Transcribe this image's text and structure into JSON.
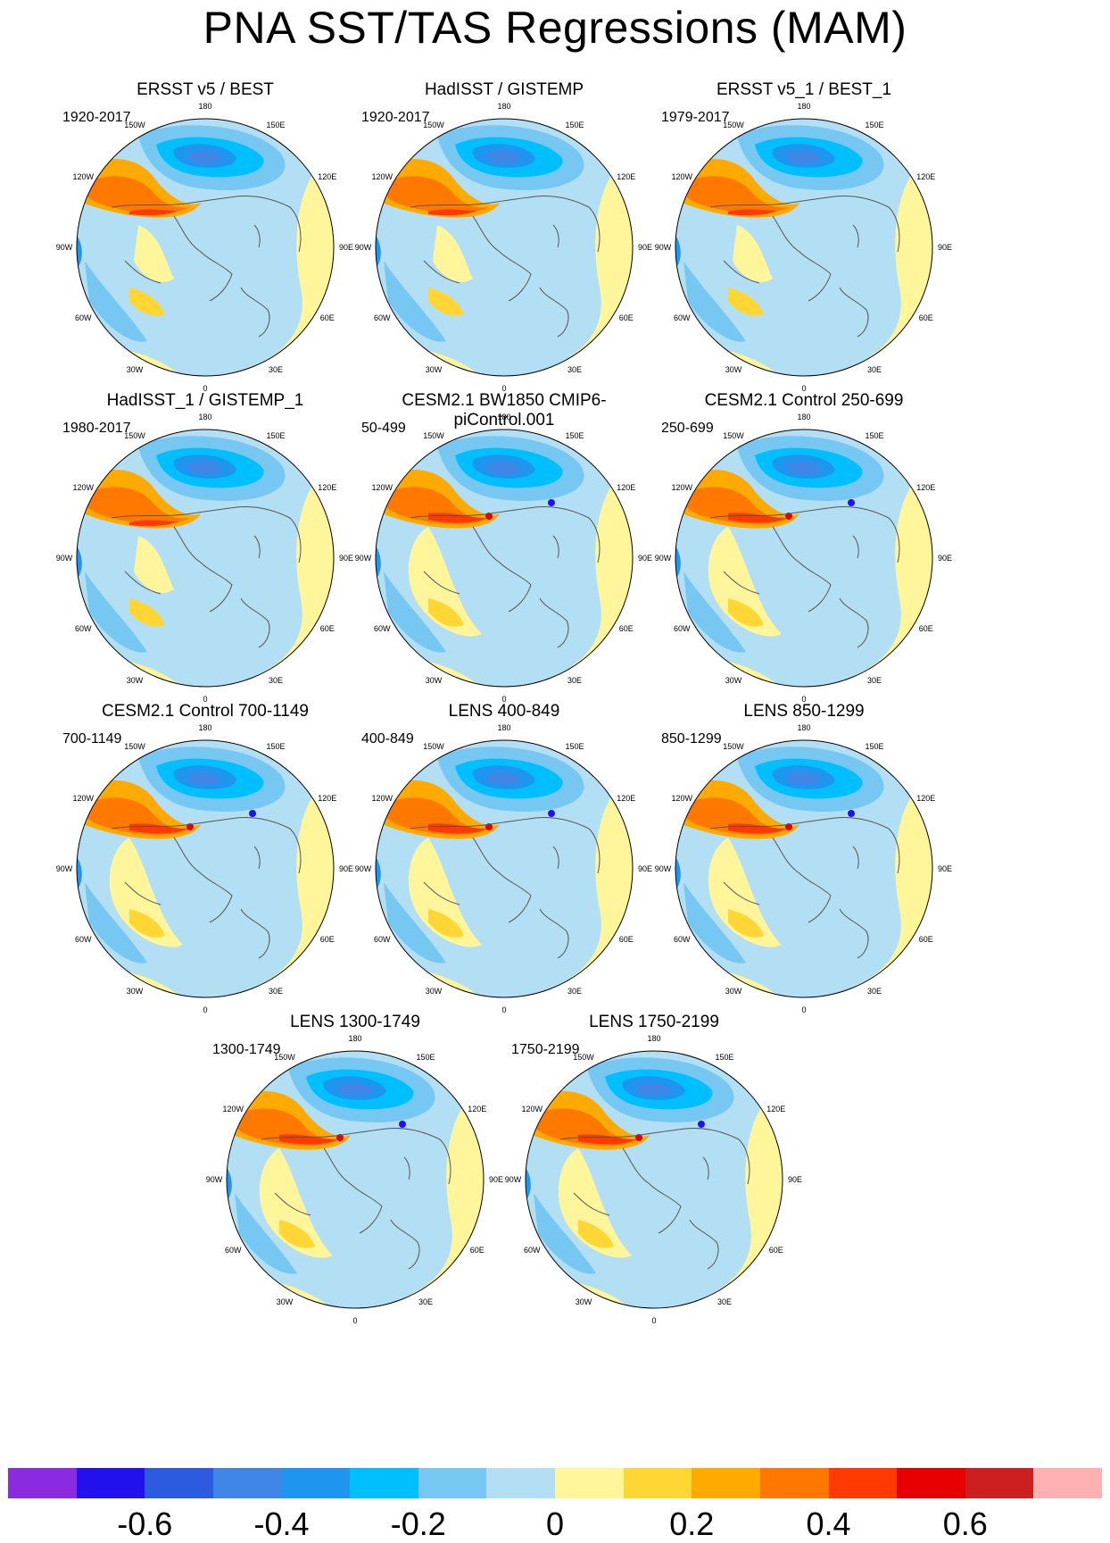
{
  "title": "PNA SST/TAS Regressions (MAM)",
  "longitude_labels": [
    "180",
    "150E",
    "120E",
    "90E",
    "60E",
    "30E",
    "0",
    "30W",
    "60W",
    "90W",
    "120W",
    "150W"
  ],
  "panels": [
    {
      "title": "ERSST v5 / BEST",
      "period": "1920-2017",
      "kind": "obs"
    },
    {
      "title": "HadISST / GISTEMP",
      "period": "1920-2017",
      "kind": "obs"
    },
    {
      "title": "ERSST v5_1 / BEST_1",
      "period": "1979-2017",
      "kind": "obs"
    },
    {
      "title": "HadISST_1 / GISTEMP_1",
      "period": "1980-2017",
      "kind": "obs"
    },
    {
      "title": "CESM2.1 BW1850 CMIP6-piControl.001",
      "period": "50-499",
      "kind": "model"
    },
    {
      "title": "CESM2.1 Control 250-699",
      "period": "250-699",
      "kind": "model"
    },
    {
      "title": "CESM2.1 Control 700-1149",
      "period": "700-1149",
      "kind": "model"
    },
    {
      "title": "LENS 400-849",
      "period": "400-849",
      "kind": "model"
    },
    {
      "title": "LENS 850-1299",
      "period": "850-1299",
      "kind": "model"
    },
    {
      "title": "LENS 1300-1749",
      "period": "1300-1749",
      "kind": "model"
    },
    {
      "title": "LENS 1750-2199",
      "period": "1750-2199",
      "kind": "model"
    }
  ],
  "colorbar": {
    "colors": [
      "#8a2be2",
      "#2211ee",
      "#2c5be0",
      "#3f86e6",
      "#1e96f0",
      "#00bfff",
      "#76c8f2",
      "#b2dff3",
      "#fff59b",
      "#ffd633",
      "#ffaa00",
      "#ff7800",
      "#ff3a00",
      "#e60000",
      "#cc2020",
      "#ffb0b0"
    ],
    "ticks": [
      "-0.6",
      "-0.4",
      "-0.2",
      "0",
      "0.2",
      "0.4",
      "0.6"
    ],
    "tick_values": [
      -0.6,
      -0.4,
      -0.2,
      0,
      0.2,
      0.4,
      0.6
    ],
    "range": [
      -0.8,
      0.8
    ]
  }
}
